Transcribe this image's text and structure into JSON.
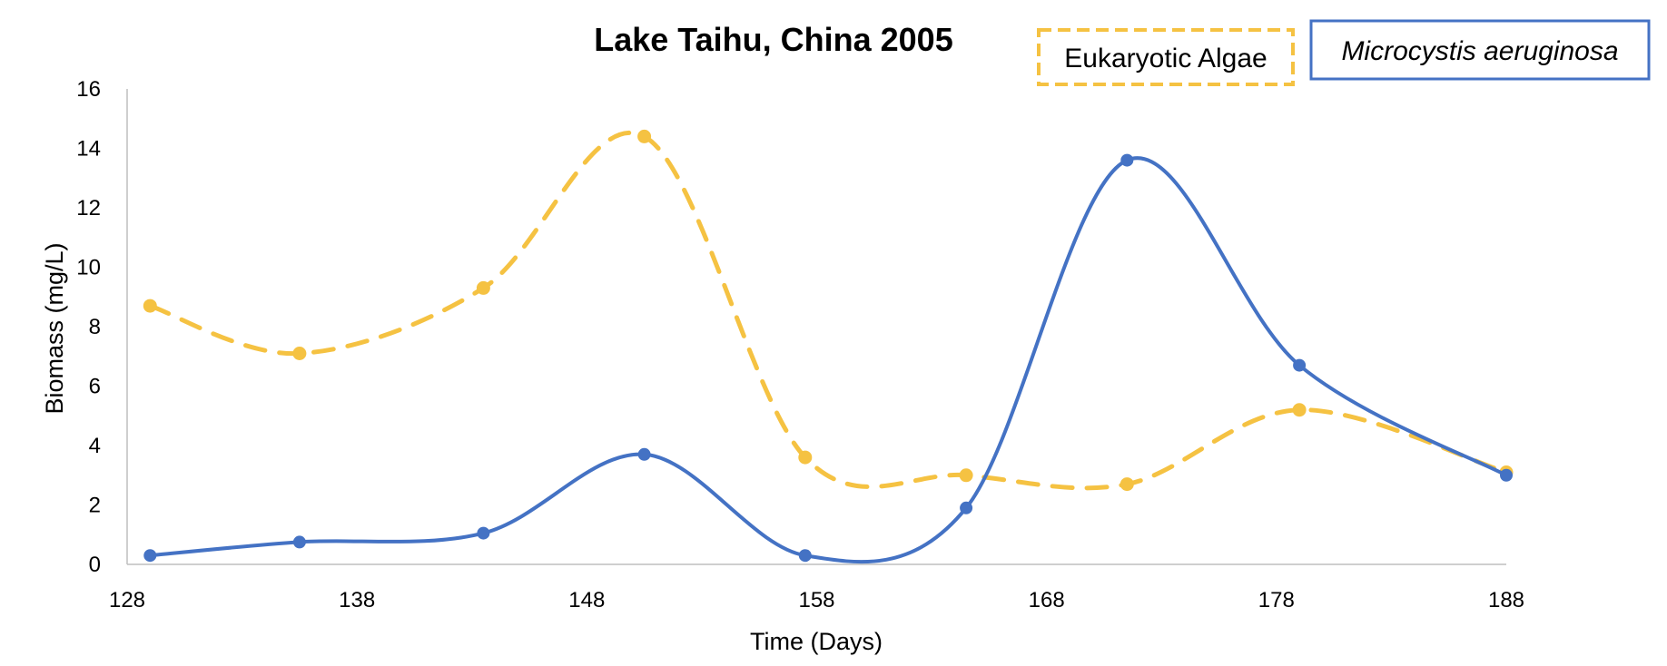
{
  "chart_data": {
    "type": "line",
    "title": "Lake Taihu, China 2005",
    "xlabel": "Time (Days)",
    "ylabel": "Biomass (mg/L)",
    "xlim": [
      128,
      188
    ],
    "ylim": [
      0,
      16
    ],
    "xticks": [
      "128",
      "138",
      "148",
      "158",
      "168",
      "178",
      "188"
    ],
    "yticks": [
      "0",
      "2",
      "4",
      "6",
      "8",
      "10",
      "12",
      "14",
      "16"
    ],
    "grid": false,
    "legend_position": "top-right",
    "series": [
      {
        "name": "Eukaryotic Algae",
        "color": "#F5C242",
        "style": "dashed",
        "x": [
          129,
          135.5,
          143.5,
          150.5,
          157.5,
          164.5,
          171.5,
          179,
          188
        ],
        "y": [
          8.7,
          7.1,
          9.3,
          14.4,
          3.6,
          3.0,
          2.7,
          5.2,
          3.1
        ]
      },
      {
        "name": "Microcystis aeruginosa",
        "color": "#4472C4",
        "style": "solid",
        "x": [
          129,
          135.5,
          143.5,
          150.5,
          157.5,
          164.5,
          171.5,
          179,
          188
        ],
        "y": [
          0.3,
          0.75,
          1.05,
          3.7,
          0.3,
          1.9,
          13.6,
          6.7,
          3.0
        ]
      }
    ]
  }
}
